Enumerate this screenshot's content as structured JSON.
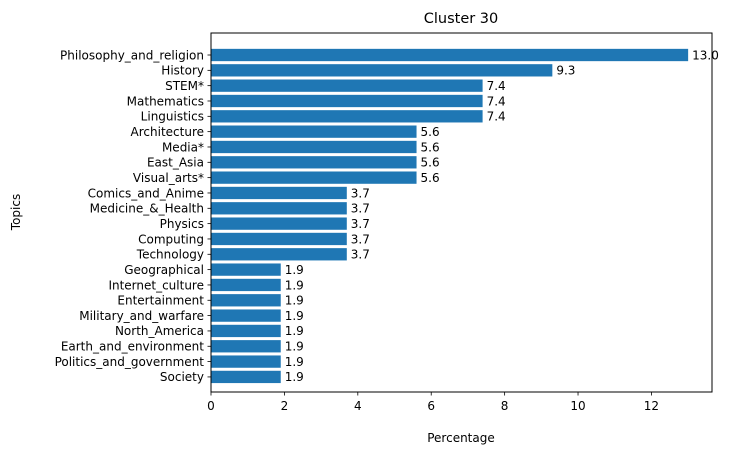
{
  "chart_data": {
    "type": "bar",
    "orientation": "horizontal",
    "title": "Cluster 30",
    "xlabel": "Percentage",
    "ylabel": "Topics",
    "xlim": [
      0,
      13.65
    ],
    "xticks": [
      0,
      2,
      4,
      6,
      8,
      10,
      12
    ],
    "grid": false,
    "bar_color": "#1f77b4",
    "categories": [
      "Philosophy_and_religion",
      "History",
      "STEM*",
      "Mathematics",
      "Linguistics",
      "Architecture",
      "Media*",
      "East_Asia",
      "Visual_arts*",
      "Comics_and_Anime",
      "Medicine_&_Health",
      "Physics",
      "Computing",
      "Technology",
      "Geographical",
      "Internet_culture",
      "Entertainment",
      "Military_and_warfare",
      "North_America",
      "Earth_and_environment",
      "Politics_and_government",
      "Society"
    ],
    "values": [
      13.0,
      9.3,
      7.4,
      7.4,
      7.4,
      5.6,
      5.6,
      5.6,
      5.6,
      3.7,
      3.7,
      3.7,
      3.7,
      3.7,
      1.9,
      1.9,
      1.9,
      1.9,
      1.9,
      1.9,
      1.9,
      1.9
    ],
    "value_labels": [
      "13.0",
      "9.3",
      "7.4",
      "7.4",
      "7.4",
      "5.6",
      "5.6",
      "5.6",
      "5.6",
      "3.7",
      "3.7",
      "3.7",
      "3.7",
      "3.7",
      "1.9",
      "1.9",
      "1.9",
      "1.9",
      "1.9",
      "1.9",
      "1.9",
      "1.9"
    ]
  }
}
